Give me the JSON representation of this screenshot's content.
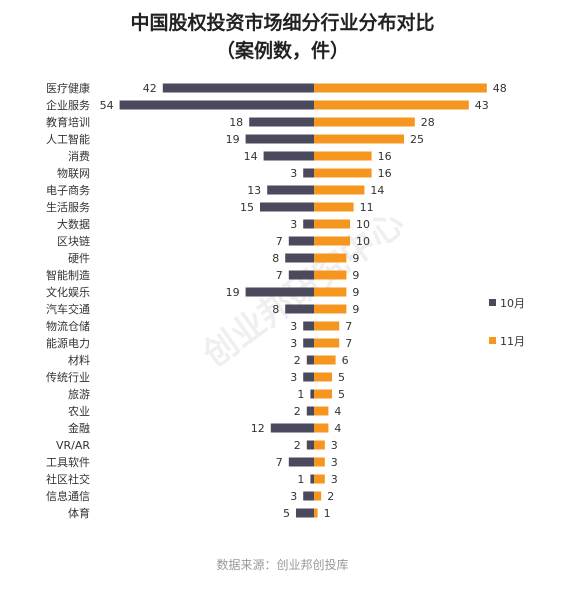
{
  "chart_data": {
    "type": "bar",
    "orientation": "horizontal-diverging",
    "title": "中国股权投资市场细分行业分布对比",
    "subtitle": "（案例数，件）",
    "categories": [
      "医疗健康",
      "企业服务",
      "教育培训",
      "人工智能",
      "消费",
      "物联网",
      "电子商务",
      "生活服务",
      "大数据",
      "区块链",
      "硬件",
      "智能制造",
      "文化娱乐",
      "汽车交通",
      "物流仓储",
      "能源电力",
      "材料",
      "传统行业",
      "旅游",
      "农业",
      "金融",
      "VR/AR",
      "工具软件",
      "社区社交",
      "信息通信",
      "体育"
    ],
    "series": [
      {
        "name": "10月",
        "color": "#4a4a5c",
        "direction": "left",
        "values": [
          42,
          54,
          18,
          19,
          14,
          3,
          13,
          15,
          3,
          7,
          8,
          7,
          19,
          8,
          3,
          3,
          2,
          3,
          1,
          2,
          12,
          2,
          7,
          1,
          3,
          5
        ]
      },
      {
        "name": "11月",
        "color": "#f5961e",
        "direction": "right",
        "values": [
          48,
          43,
          28,
          25,
          16,
          16,
          14,
          11,
          10,
          10,
          9,
          9,
          9,
          9,
          7,
          7,
          6,
          5,
          5,
          4,
          4,
          3,
          3,
          3,
          2,
          1
        ]
      }
    ],
    "legend_position": "right",
    "grid": false
  },
  "watermark": "创业邦研究中心",
  "source": "数据来源：创业邦创投库"
}
